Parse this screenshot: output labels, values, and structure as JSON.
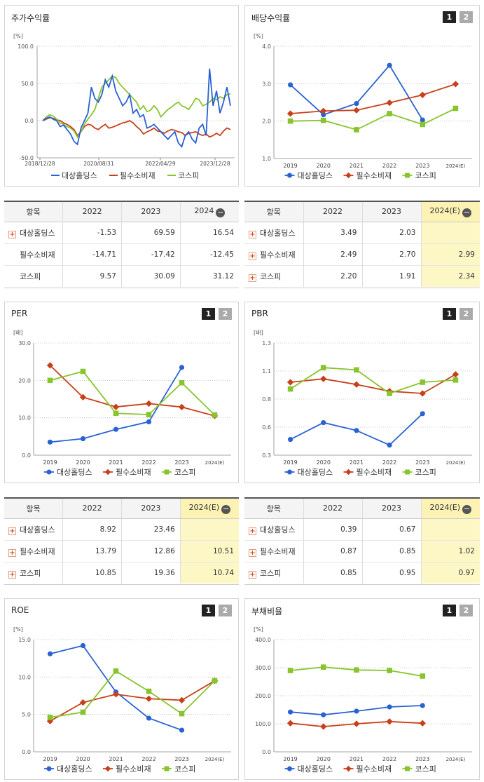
{
  "legend": [
    "대상홀딩스",
    "필수소비재",
    "코스피"
  ],
  "colors": [
    "#2a62d2",
    "#c8401a",
    "#88c42c"
  ],
  "btn1": "1",
  "btn2": "2",
  "minus": "−",
  "plus": "+",
  "price": {
    "title": "주가수익률",
    "unit": "[%]",
    "yticks": [
      "100.0",
      "50.0",
      "0.0",
      "-50.0"
    ],
    "xticks": [
      "2018/12/28",
      "2020/08/31",
      "2022/04/29",
      "2023/12/28"
    ]
  },
  "div": {
    "title": "배당수익률",
    "unit": "[%]"
  },
  "per": {
    "title": "PER",
    "unit": "[배]"
  },
  "pbr": {
    "title": "PBR",
    "unit": "[배]"
  },
  "roe": {
    "title": "ROE",
    "unit": "[%]"
  },
  "debt": {
    "title": "부채비율",
    "unit": "[%]"
  },
  "tables": {
    "price": {
      "head": [
        "항목",
        "2022",
        "2023",
        "2024"
      ],
      "rows": [
        {
          "n": "대상홀딩스",
          "p": true,
          "v": [
            "-1.53",
            "69.59",
            "16.54"
          ]
        },
        {
          "n": "필수소비재",
          "p": false,
          "v": [
            "-14.71",
            "-17.42",
            "-12.45"
          ]
        },
        {
          "n": "코스피",
          "p": false,
          "v": [
            "9.57",
            "30.09",
            "31.12"
          ]
        }
      ]
    },
    "div": {
      "head": [
        "항목",
        "2022",
        "2023",
        "2024(E)"
      ],
      "rows": [
        {
          "n": "대상홀딩스",
          "p": true,
          "v": [
            "3.49",
            "2.03",
            ""
          ]
        },
        {
          "n": "필수소비재",
          "p": true,
          "v": [
            "2.49",
            "2.70",
            "2.99"
          ]
        },
        {
          "n": "코스피",
          "p": true,
          "v": [
            "2.20",
            "1.91",
            "2.34"
          ]
        }
      ]
    },
    "per": {
      "head": [
        "항목",
        "2022",
        "2023",
        "2024(E)"
      ],
      "rows": [
        {
          "n": "대상홀딩스",
          "p": true,
          "v": [
            "8.92",
            "23.46",
            ""
          ]
        },
        {
          "n": "필수소비재",
          "p": true,
          "v": [
            "13.79",
            "12.86",
            "10.51"
          ]
        },
        {
          "n": "코스피",
          "p": true,
          "v": [
            "10.85",
            "19.36",
            "10.74"
          ]
        }
      ]
    },
    "pbr": {
      "head": [
        "항목",
        "2022",
        "2023",
        "2024(E)"
      ],
      "rows": [
        {
          "n": "대상홀딩스",
          "p": true,
          "v": [
            "0.39",
            "0.67",
            ""
          ]
        },
        {
          "n": "필수소비재",
          "p": true,
          "v": [
            "0.87",
            "0.85",
            "1.02"
          ]
        },
        {
          "n": "코스피",
          "p": true,
          "v": [
            "0.85",
            "0.95",
            "0.97"
          ]
        }
      ]
    }
  },
  "chart_data": [
    {
      "type": "line",
      "title": "주가수익률",
      "ylabel": "[%]",
      "ylim": [
        -50,
        100
      ],
      "x_labels": [
        "2018/12/28",
        "2020/08/31",
        "2022/04/29",
        "2023/12/28"
      ],
      "series": [
        {
          "name": "대상홀딩스",
          "values": [
            0,
            3,
            5,
            2,
            0,
            -8,
            -6,
            -12,
            -18,
            -28,
            -32,
            -10,
            0,
            10,
            45,
            30,
            25,
            35,
            55,
            45,
            60,
            40,
            30,
            20,
            25,
            35,
            10,
            15,
            5,
            8,
            -10,
            -8,
            -5,
            -10,
            -15,
            -20,
            -25,
            -20,
            -15,
            -30,
            -35,
            -20,
            -15,
            -25,
            -30,
            -10,
            -5,
            -20,
            70,
            20,
            40,
            10,
            25,
            45,
            20
          ]
        },
        {
          "name": "필수소비재",
          "values": [
            0,
            2,
            4,
            3,
            1,
            0,
            -3,
            -5,
            -8,
            -12,
            -20,
            -15,
            -8,
            -5,
            -6,
            -10,
            -12,
            -8,
            -5,
            -10,
            -9,
            -7,
            -5,
            -3,
            -2,
            0,
            -3,
            -8,
            -12,
            -18,
            -15,
            -13,
            -10,
            -14,
            -15,
            -17,
            -14,
            -12,
            -13,
            -15,
            -16,
            -20,
            -17,
            -16,
            -15,
            -18,
            -20,
            -18,
            -22,
            -20,
            -17,
            -20,
            -14,
            -10,
            -12
          ]
        },
        {
          "name": "코스피",
          "values": [
            0,
            5,
            8,
            6,
            2,
            -3,
            -5,
            -8,
            -10,
            -14,
            -22,
            -15,
            -5,
            2,
            8,
            15,
            30,
            45,
            50,
            55,
            60,
            58,
            50,
            45,
            40,
            35,
            30,
            25,
            15,
            20,
            12,
            14,
            20,
            15,
            5,
            10,
            15,
            18,
            22,
            25,
            20,
            18,
            15,
            22,
            30,
            28,
            20,
            22,
            25,
            30,
            28,
            32,
            30,
            35,
            36
          ]
        }
      ]
    },
    {
      "type": "line",
      "title": "배당수익률",
      "ylabel": "[%]",
      "ylim": [
        1.0,
        4.0
      ],
      "x_labels": [
        "2019",
        "2020",
        "2021",
        "2022",
        "2023",
        "2024(E)"
      ],
      "series": [
        {
          "name": "대상홀딩스",
          "values": [
            2.97,
            2.17,
            2.47,
            3.49,
            2.03,
            null
          ]
        },
        {
          "name": "필수소비재",
          "values": [
            2.2,
            2.27,
            2.29,
            2.49,
            2.7,
            2.99
          ]
        },
        {
          "name": "코스피",
          "values": [
            2.0,
            2.02,
            1.77,
            2.2,
            1.91,
            2.34
          ]
        }
      ]
    },
    {
      "type": "line",
      "title": "PER",
      "ylabel": "[배]",
      "ylim": [
        0,
        30
      ],
      "x_labels": [
        "2019",
        "2020",
        "2021",
        "2022",
        "2023",
        "2024(E)"
      ],
      "series": [
        {
          "name": "대상홀딩스",
          "values": [
            3.5,
            4.4,
            6.9,
            8.92,
            23.46,
            null
          ]
        },
        {
          "name": "필수소비재",
          "values": [
            24.0,
            15.5,
            12.9,
            13.79,
            12.86,
            10.51
          ]
        },
        {
          "name": "코스피",
          "values": [
            20.0,
            22.4,
            11.2,
            10.85,
            19.36,
            10.74
          ]
        }
      ]
    },
    {
      "type": "line",
      "title": "PBR",
      "ylabel": "[배]",
      "ylim": [
        0.3,
        1.3
      ],
      "x_labels": [
        "2019",
        "2020",
        "2021",
        "2022",
        "2023",
        "2024(E)"
      ],
      "series": [
        {
          "name": "대상홀딩스",
          "values": [
            0.44,
            0.59,
            0.52,
            0.39,
            0.67,
            null
          ]
        },
        {
          "name": "필수소비재",
          "values": [
            0.95,
            0.98,
            0.93,
            0.87,
            0.85,
            1.02
          ]
        },
        {
          "name": "코스피",
          "values": [
            0.89,
            1.08,
            1.06,
            0.85,
            0.95,
            0.97
          ]
        }
      ]
    },
    {
      "type": "line",
      "title": "ROE",
      "ylabel": "[%]",
      "ylim": [
        0,
        15
      ],
      "x_labels": [
        "2019",
        "2020",
        "2021",
        "2022",
        "2023",
        "2024(E)"
      ],
      "series": [
        {
          "name": "대상홀딩스",
          "values": [
            13.1,
            14.2,
            8.0,
            4.5,
            2.9,
            null
          ]
        },
        {
          "name": "필수소비재",
          "values": [
            4.1,
            6.6,
            7.7,
            7.1,
            6.9,
            9.5
          ]
        },
        {
          "name": "코스피",
          "values": [
            4.6,
            5.3,
            10.8,
            8.1,
            5.1,
            9.5
          ]
        }
      ]
    },
    {
      "type": "line",
      "title": "부채비율",
      "ylabel": "[%]",
      "ylim": [
        0,
        400
      ],
      "x_labels": [
        "2019",
        "2020",
        "2021",
        "2022",
        "2023",
        "2024(E)"
      ],
      "series": [
        {
          "name": "대상홀딩스",
          "values": [
            142,
            132,
            145,
            160,
            165,
            null
          ]
        },
        {
          "name": "필수소비재",
          "values": [
            102,
            90,
            100,
            108,
            102,
            null
          ]
        },
        {
          "name": "코스피",
          "values": [
            290,
            302,
            292,
            290,
            270,
            null
          ]
        }
      ]
    }
  ]
}
